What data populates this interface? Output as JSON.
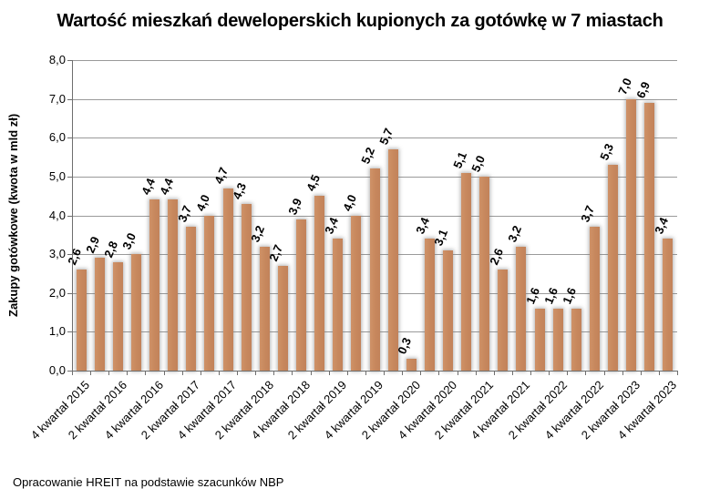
{
  "chart_data": {
    "type": "bar",
    "title": "Wartość mieszkań deweloperskich kupionych za gotówkę w 7 miastach",
    "xlabel": "",
    "ylabel": "Zakupy gotówkowe (kwota w mld zł)",
    "ylim": [
      0,
      8
    ],
    "ytick_step": 1.0,
    "ytick_labels": [
      "0,0",
      "1,0",
      "2,0",
      "3,0",
      "4,0",
      "5,0",
      "6,0",
      "7,0",
      "8,0"
    ],
    "grid": true,
    "legend": false,
    "bar_color": "#C8895E",
    "values": [
      2.6,
      2.9,
      2.8,
      3.0,
      4.4,
      4.4,
      3.7,
      4.0,
      4.7,
      4.3,
      3.2,
      2.7,
      3.9,
      4.5,
      3.4,
      4.0,
      5.2,
      5.7,
      0.3,
      3.4,
      3.1,
      5.1,
      5.0,
      2.6,
      3.2,
      1.6,
      1.6,
      1.6,
      3.7,
      5.3,
      7.0,
      6.9,
      3.4
    ],
    "bar_labels": [
      "2,6",
      "2,9",
      "2,8",
      "3,0",
      "4,4",
      "4,4",
      "3,7",
      "4,0",
      "4,7",
      "4,3",
      "3,2",
      "2,7",
      "3,9",
      "4,5",
      "3,4",
      "4,0",
      "5,2",
      "5,7",
      "0,3",
      "3,4",
      "3,1",
      "5,1",
      "5,0",
      "2,6",
      "3,2",
      "1,6",
      "1,6",
      "1,6",
      "3,7",
      "5,3",
      "7,0",
      "6,9",
      "3,4"
    ],
    "x_tick_labels": [
      "4 kwartał 2015",
      "2 kwartał 2016",
      "4 kwartał 2016",
      "2 kwartał 2017",
      "4 kwartał 2017",
      "2 kwartał 2018",
      "4 kwartał 2018",
      "2 kwartał 2019",
      "4 kwartał 2019",
      "2 kwartał 2020",
      "4 kwartał 2020",
      "2 kwartał 2021",
      "4 kwartał 2021",
      "2 kwartał 2022",
      "4 kwartał 2022",
      "2 kwartał 2023",
      "4 kwartał 2023"
    ],
    "x_tick_label_every": 2,
    "source_note": "Opracowanie HREIT na podstawie szacunków NBP"
  }
}
